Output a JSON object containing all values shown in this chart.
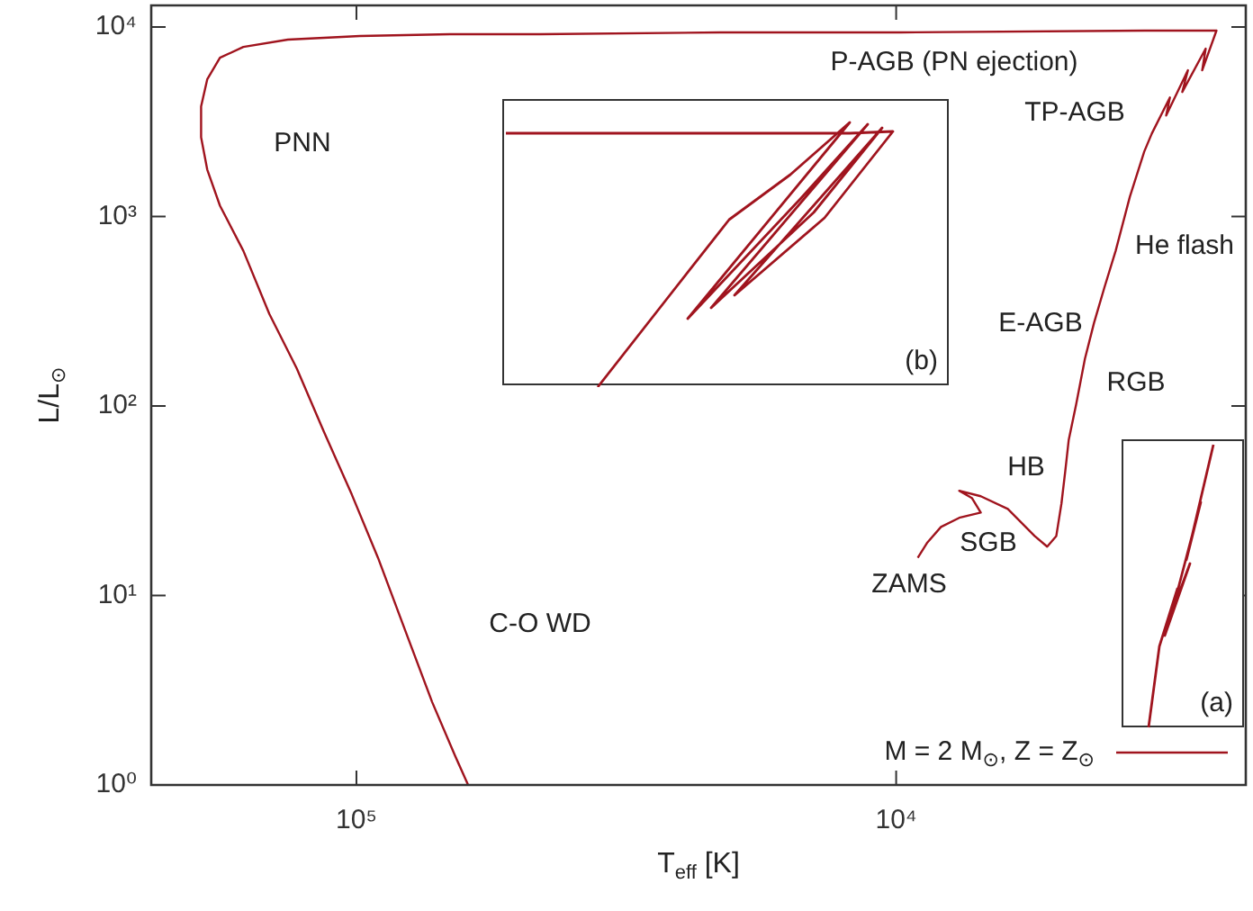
{
  "chart_data": [
    {
      "type": "line",
      "xlabel": "T$_{eff}$ [K]",
      "ylabel": "L/L$_{⊙}$",
      "log": "xy",
      "legend": "bottom right",
      "xlim": [
        240000,
        2250
      ],
      "ylim": [
        1,
        13000
      ],
      "xticks": [
        {
          "value": 100000,
          "label": "10⁵"
        },
        {
          "value": 10000,
          "label": "10⁴"
        }
      ],
      "yticks": [
        {
          "value": 1,
          "label": "10⁰"
        },
        {
          "value": 10,
          "label": "10¹"
        },
        {
          "value": 100,
          "label": "10²"
        },
        {
          "value": 1000,
          "label": "10³"
        },
        {
          "value": 10000,
          "label": "10⁴"
        }
      ],
      "series": [
        {
          "name": "M = 2 M$_{⊙}$, Z = Z$_{⊙}$",
          "color": "#a0141e",
          "x": [
            9120,
            8770,
            8260,
            7640,
            6970,
            7240,
            7640,
            6970,
            6210,
            5540,
            5250,
            5050,
            4940,
            4860,
            4790,
            4640,
            4470,
            4300,
            4110,
            3920,
            3690,
            3470,
            3360,
            3110,
            3160,
            2880,
            2950,
            2670,
            2710,
            2550,
            3360,
            9850,
            21200,
            45700,
            67100,
            98500,
            134000,
            162000,
            179000,
            189000,
            194000,
            194000,
            189000,
            179000,
            162000,
            145000,
            129000,
            115000,
            102000,
            91200,
            81300,
            72400,
            65600,
            62100
          ],
          "values": [
            15.8,
            18.9,
            23,
            25.7,
            27.4,
            32.7,
            35.7,
            33.4,
            28.6,
            20.6,
            18.1,
            20.6,
            30.6,
            45.4,
            65.9,
            102,
            177,
            274,
            425,
            659,
            1270,
            2200,
            2740,
            4250,
            3410,
            5910,
            4540,
            7690,
            5910,
            9570,
            9570,
            9360,
            9360,
            9160,
            9160,
            8960,
            8580,
            7850,
            6880,
            5290,
            3810,
            2620,
            1770,
            1140,
            659,
            306,
            158,
            73.6,
            34.1,
            15.8,
            6.59,
            2.74,
            1.42,
            1
          ]
        }
      ],
      "annotations": [
        "PNN",
        "C-O WD",
        "P-AGB (PN ejection)",
        "TP-AGB",
        "He flash",
        "E-AGB",
        "RGB",
        "HB",
        "SGB",
        "ZAMS"
      ]
    },
    {
      "type": "other",
      "annotations": [
        "(b)"
      ]
    },
    {
      "type": "other",
      "annotations": [
        "(a)"
      ]
    }
  ]
}
